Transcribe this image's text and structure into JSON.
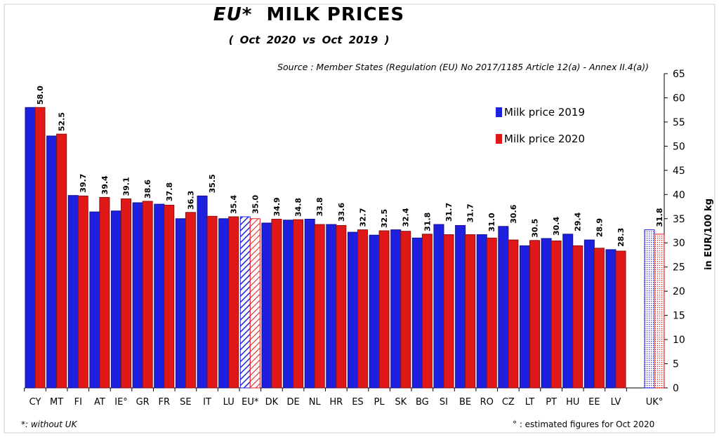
{
  "title_prefix": "EU*",
  "title_rest": "MILK PRICES",
  "subtitle": "( Oct 2020 vs Oct 2019 )",
  "source": "Source : Member States (Regulation (EU) No 2017/1185 Article 12(a) - Annex II.4(a))",
  "footnote_left": "*: without UK",
  "footnote_right": "° : estimated figures for Oct 2020",
  "colors": {
    "series_2019": "#1f1fe0",
    "series_2020": "#e01818"
  },
  "chart_data": {
    "type": "bar",
    "title": "EU* MILK PRICES",
    "subtitle": "( Oct 2020 vs Oct 2019 )",
    "ylabel": "in EUR/100 kg",
    "ylim": [
      0,
      65
    ],
    "yticks": [
      0,
      5,
      10,
      15,
      20,
      25,
      30,
      35,
      40,
      45,
      50,
      55,
      60,
      65
    ],
    "y_axis_side": "right",
    "legend_position": "upper-right",
    "categories": [
      "CY",
      "MT",
      "FI",
      "AT",
      "IE°",
      "GR",
      "FR",
      "SE",
      "IT",
      "LU",
      "EU*",
      "DK",
      "DE",
      "NL",
      "HR",
      "ES",
      "PL",
      "SK",
      "BG",
      "SI",
      "BE",
      "RO",
      "CZ",
      "LT",
      "PT",
      "HU",
      "EE",
      "LV",
      "UK°"
    ],
    "series": [
      {
        "name": "Milk price 2019",
        "values": [
          58.0,
          52.1,
          39.8,
          36.4,
          36.6,
          38.3,
          38.0,
          35.0,
          39.7,
          35.0,
          35.4,
          34.1,
          34.7,
          34.9,
          33.8,
          32.2,
          31.6,
          32.7,
          31.0,
          33.8,
          33.6,
          31.7,
          33.4,
          29.4,
          30.9,
          31.8,
          30.6,
          28.6,
          32.7
        ]
      },
      {
        "name": "Milk price 2020",
        "values": [
          58.0,
          52.5,
          39.7,
          39.4,
          39.1,
          38.6,
          37.8,
          36.3,
          35.5,
          35.4,
          35.0,
          34.9,
          34.8,
          33.8,
          33.6,
          32.7,
          32.5,
          32.4,
          31.8,
          31.7,
          31.7,
          31.0,
          30.6,
          30.5,
          30.4,
          29.4,
          28.9,
          28.3,
          31.8
        ]
      }
    ],
    "data_labels_2020": [
      "58.0",
      "52.5",
      "39.7",
      "39.4",
      "39.1",
      "38.6",
      "37.8",
      "36.3",
      "35.5",
      "35.4",
      "35.0",
      "34.9",
      "34.8",
      "33.8",
      "33.6",
      "32.7",
      "32.5",
      "32.4",
      "31.8",
      "31.7",
      "31.7",
      "31.0",
      "30.6",
      "30.5",
      "30.4",
      "29.4",
      "28.9",
      "28.3",
      "31.8"
    ],
    "hatched_categories": [
      "EU*"
    ],
    "dotted_categories": [
      "UK°"
    ]
  }
}
